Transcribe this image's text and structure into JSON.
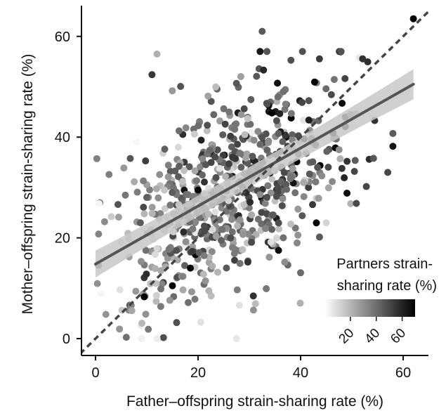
{
  "chart_data": {
    "type": "scatter",
    "title": "",
    "xlabel": "Father–offspring strain-sharing rate (%)",
    "ylabel": "Mother–offspring strain-sharing rate (%)",
    "xlim": [
      -3,
      65
    ],
    "ylim": [
      -3,
      66
    ],
    "xticks": [
      0,
      20,
      40,
      60
    ],
    "yticks": [
      0,
      20,
      40,
      60
    ],
    "legend": {
      "title_line1": "Partners strain-",
      "title_line2": "sharing rate (%)",
      "placement": "bottom-right",
      "colorbar_range": [
        0,
        70
      ],
      "colorbar_ticks": [
        20,
        40,
        60
      ],
      "colormap": [
        "#ffffff",
        "#000000"
      ]
    },
    "regression_line": {
      "x": [
        0,
        62
      ],
      "y": [
        14.8,
        50.5
      ],
      "ci_halfwidth_ends": [
        2.0,
        3.0
      ],
      "color": "#555555",
      "band_color": "#c8c8c8"
    },
    "identity_line": {
      "x": [
        -3,
        65
      ],
      "y": [
        -3,
        65
      ],
      "style": "dashed",
      "color": "#444444"
    },
    "points": {
      "count": 720,
      "description_of_distribution": "centered near father 25, mother 28; positively correlated",
      "seed": 7,
      "center": [
        26,
        29
      ],
      "spread": [
        11,
        11
      ],
      "correlation": 0.5,
      "marker_color_by": "partners strain-sharing rate"
    },
    "highlighted_points": [
      {
        "x": 62,
        "y": 63.5,
        "c": 70
      },
      {
        "x": 57,
        "y": 33,
        "c": 50
      },
      {
        "x": 9,
        "y": 0,
        "c": 2
      },
      {
        "x": 12,
        "y": 0,
        "c": 3
      },
      {
        "x": 27.5,
        "y": 0,
        "c": 5
      },
      {
        "x": 32.5,
        "y": 61,
        "c": 45
      },
      {
        "x": 12,
        "y": 56.5,
        "c": 20
      },
      {
        "x": 20,
        "y": 29.5,
        "c": 68
      },
      {
        "x": 15,
        "y": 10.5,
        "c": 70
      },
      {
        "x": 18.5,
        "y": 14,
        "c": 70
      },
      {
        "x": 9.5,
        "y": 8.3,
        "c": 70
      },
      {
        "x": 45,
        "y": 23,
        "c": 10
      },
      {
        "x": 47.5,
        "y": 37.5,
        "c": 30
      }
    ]
  }
}
